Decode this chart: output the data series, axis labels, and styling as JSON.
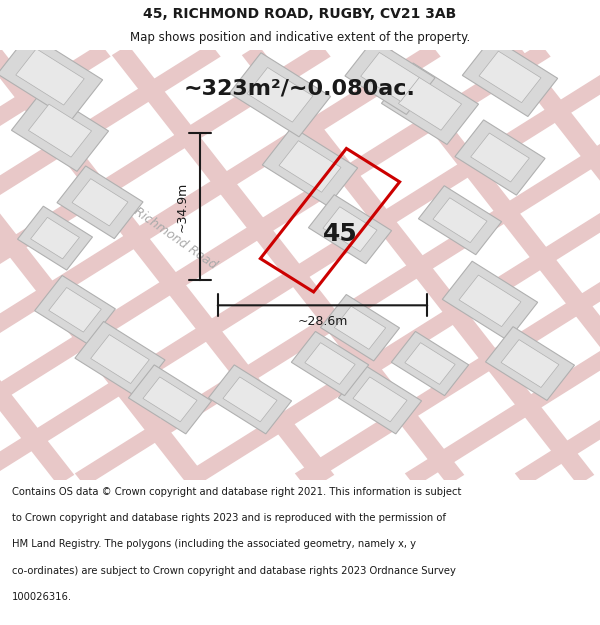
{
  "title_line1": "45, RICHMOND ROAD, RUGBY, CV21 3AB",
  "title_line2": "Map shows position and indicative extent of the property.",
  "area_text": "~323m²/~0.080ac.",
  "label_45": "45",
  "dim_height": "~34.9m",
  "dim_width": "~28.6m",
  "road_label": "Richmond Road",
  "footer_text": "Contains OS data © Crown copyright and database right 2021. This information is subject to Crown copyright and database rights 2023 and is reproduced with the permission of HM Land Registry. The polygons (including the associated geometry, namely x, y co-ordinates) are subject to Crown copyright and database rights 2023 Ordnance Survey 100026316.",
  "bg_color": "#f5f4f2",
  "map_bg": "#f5f4f2",
  "building_color": "#d8d8d8",
  "building_edge": "#b0b0b0",
  "road_line_color": "#e8c8c8",
  "road_fill_color": "#f0e0e0",
  "property_color": "#cc0000",
  "dim_color": "#1a1a1a",
  "text_color": "#1a1a1a",
  "road_text_color": "#aaaaaa"
}
